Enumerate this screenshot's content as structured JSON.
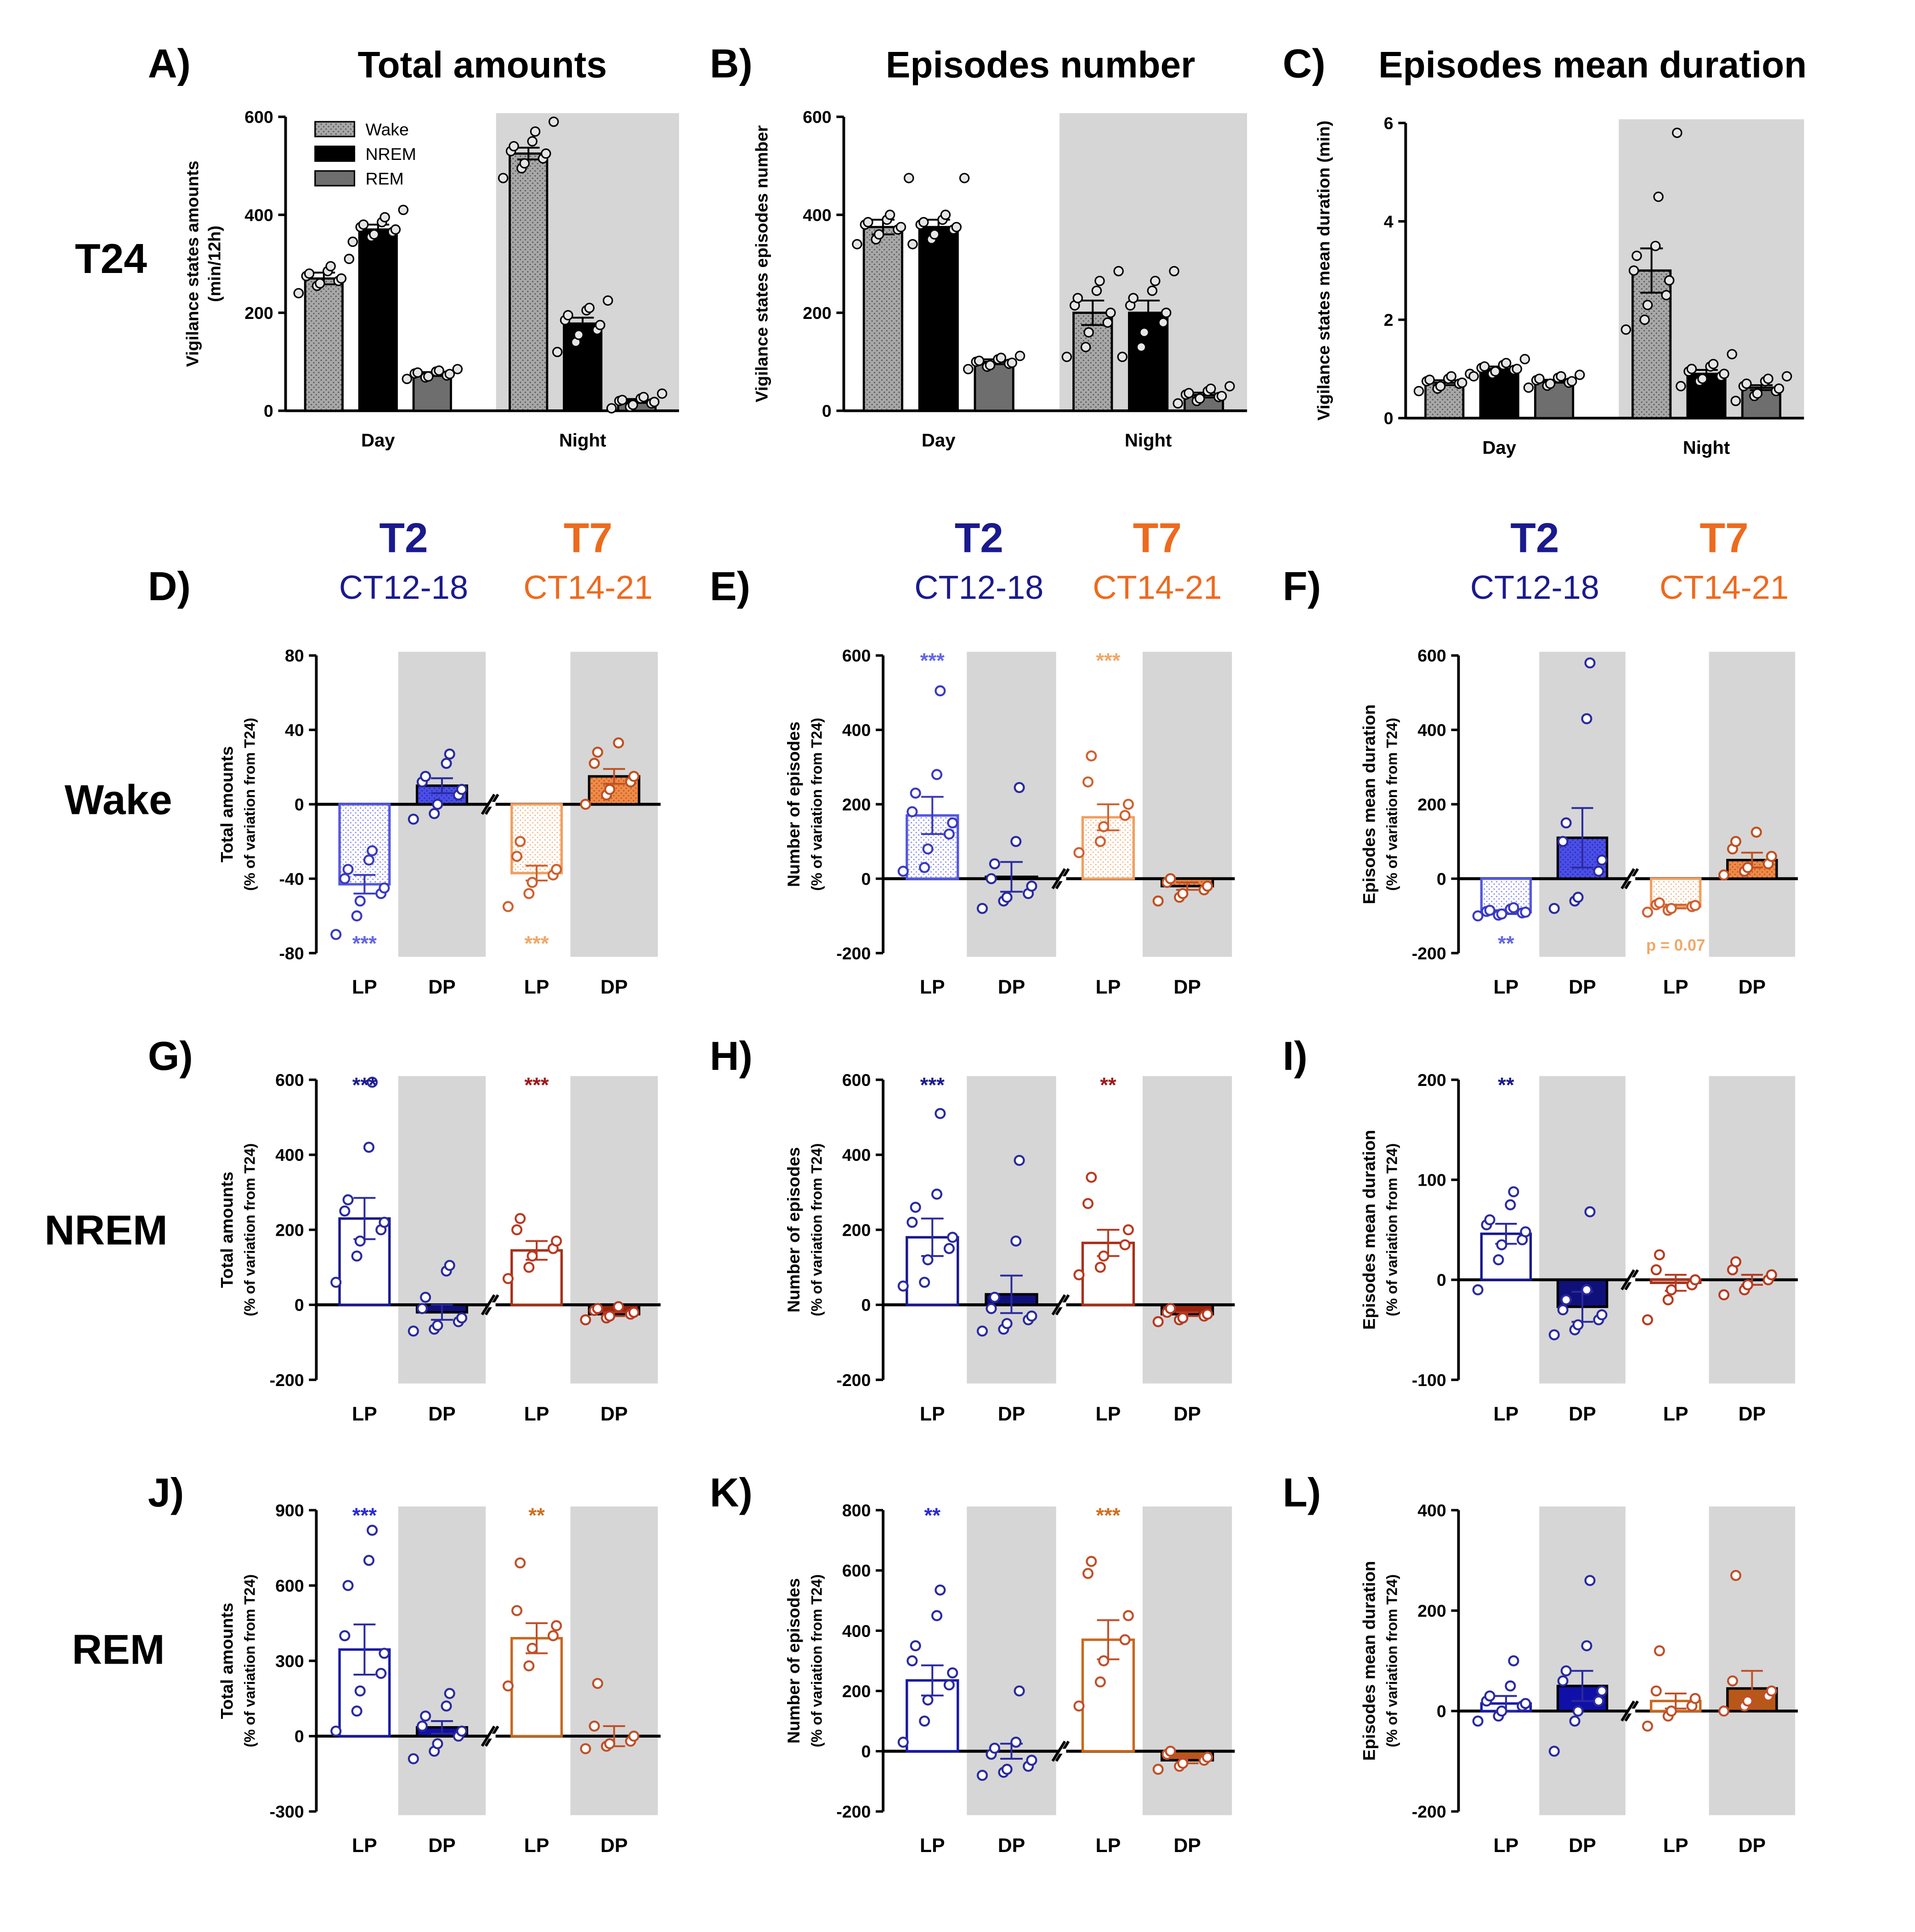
{
  "row_labels": [
    "T24",
    "Wake",
    "NREM",
    "REM"
  ],
  "column_groups": [
    {
      "g1": "T2",
      "s1": "CT12-18",
      "g2": "T7",
      "s2": "CT14-21"
    },
    {
      "g1": "T2",
      "s1": "CT12-18",
      "g2": "T7",
      "s2": "CT14-21"
    },
    {
      "g1": "T2",
      "s1": "CT12-18",
      "g2": "T7",
      "s2": "CT14-21"
    }
  ],
  "colors": {
    "t2_light": "#5558e0",
    "t2_dark": "#1a1a8e",
    "t7_light": "#f0a060",
    "t7_dark": "#a83018",
    "night_shade": "#d6d6d6",
    "wake_bar": "#a0a0a0",
    "nrem_bar": "#000000",
    "rem_bar": "#6e6e6e"
  },
  "chart_data": [
    {
      "id": "A",
      "letter": "A)",
      "type": "bar",
      "title": "Total amounts",
      "ylabel": [
        "Vigilance states amounts",
        "(min/12h)"
      ],
      "ylim": [
        0,
        600
      ],
      "yticks": [
        "0",
        "200",
        "400",
        "600"
      ],
      "categories": [
        "Day",
        "Night"
      ],
      "shaded_category": "Night",
      "legend": [
        {
          "name": "Wake",
          "pattern": "dotted"
        },
        {
          "name": "NREM",
          "pattern": "solid-black"
        },
        {
          "name": "REM",
          "pattern": "solid-gray"
        }
      ],
      "series": [
        {
          "name": "Wake",
          "values": [
            270,
            525
          ],
          "sem": [
            12,
            12
          ],
          "points": [
            [
              240,
              255,
              260,
              265,
              270,
              275,
              280,
              285,
              295,
              310
            ],
            [
              475,
              495,
              505,
              515,
              525,
              530,
              540,
              550,
              570,
              590
            ]
          ]
        },
        {
          "name": "NREM",
          "values": [
            370,
            178
          ],
          "sem": [
            10,
            12
          ],
          "points": [
            [
              345,
              355,
              360,
              365,
              370,
              375,
              380,
              385,
              395,
              410
            ],
            [
              120,
              140,
              155,
              165,
              175,
              185,
              195,
              205,
              210,
              225
            ]
          ]
        },
        {
          "name": "REM",
          "values": [
            75,
            20
          ],
          "sem": [
            4,
            4
          ],
          "points": [
            [
              65,
              68,
              70,
              72,
              75,
              76,
              78,
              80,
              82,
              85
            ],
            [
              5,
              8,
              12,
              15,
              18,
              20,
              22,
              25,
              28,
              35
            ]
          ]
        }
      ]
    },
    {
      "id": "B",
      "letter": "B)",
      "type": "bar",
      "title": "Episodes number",
      "ylabel": [
        "Vigilance states episodes number"
      ],
      "ylim": [
        0,
        600
      ],
      "yticks": [
        "0",
        "200",
        "400",
        "600"
      ],
      "categories": [
        "Day",
        "Night"
      ],
      "shaded_category": "Night",
      "series": [
        {
          "name": "Wake",
          "values": [
            375,
            200
          ],
          "sem": [
            15,
            25
          ],
          "points": [
            [
              340,
              350,
              360,
              370,
              375,
              380,
              385,
              390,
              400,
              475
            ],
            [
              110,
              130,
              160,
              180,
              200,
              215,
              230,
              245,
              265,
              285
            ]
          ]
        },
        {
          "name": "NREM",
          "values": [
            375,
            200
          ],
          "sem": [
            15,
            25
          ],
          "points": [
            [
              340,
              350,
              360,
              370,
              375,
              380,
              385,
              390,
              400,
              475
            ],
            [
              110,
              130,
              160,
              180,
              200,
              215,
              230,
              245,
              265,
              285
            ]
          ]
        },
        {
          "name": "REM",
          "values": [
            100,
            32
          ],
          "sem": [
            5,
            5
          ],
          "points": [
            [
              85,
              90,
              93,
              96,
              98,
              100,
              102,
              105,
              108,
              112
            ],
            [
              15,
              20,
              25,
              28,
              30,
              33,
              36,
              40,
              45,
              50
            ]
          ]
        }
      ]
    },
    {
      "id": "C",
      "letter": "C)",
      "type": "bar",
      "title": "Episodes mean duration",
      "ylabel": [
        "Vigilance states mean duration (min)"
      ],
      "ylim": [
        0,
        6
      ],
      "yticks": [
        "0",
        "2",
        "4",
        "6"
      ],
      "categories": [
        "Day",
        "Night"
      ],
      "shaded_category": "Night",
      "series": [
        {
          "name": "Wake",
          "values": [
            0.72,
            3.0
          ],
          "sem": [
            0.05,
            0.45
          ],
          "points": [
            [
              0.55,
              0.6,
              0.65,
              0.7,
              0.72,
              0.75,
              0.78,
              0.8,
              0.85,
              0.9
            ],
            [
              1.8,
              2.0,
              2.3,
              2.5,
              2.8,
              3.0,
              3.3,
              3.5,
              4.5,
              5.8
            ]
          ]
        },
        {
          "name": "NREM",
          "values": [
            1.0,
            0.9
          ],
          "sem": [
            0.05,
            0.08
          ],
          "points": [
            [
              0.85,
              0.9,
              0.95,
              0.98,
              1.0,
              1.02,
              1.05,
              1.08,
              1.12,
              1.2
            ],
            [
              0.65,
              0.75,
              0.8,
              0.85,
              0.9,
              0.95,
              1.0,
              1.05,
              1.1,
              1.3
            ]
          ]
        },
        {
          "name": "REM",
          "values": [
            0.75,
            0.62
          ],
          "sem": [
            0.03,
            0.05
          ],
          "points": [
            [
              0.62,
              0.66,
              0.7,
              0.72,
              0.75,
              0.77,
              0.8,
              0.82,
              0.85,
              0.88
            ],
            [
              0.35,
              0.45,
              0.5,
              0.55,
              0.6,
              0.65,
              0.7,
              0.75,
              0.8,
              0.85
            ]
          ]
        }
      ]
    },
    {
      "id": "D",
      "letter": "D)",
      "type": "bar",
      "state": "Wake",
      "ylabel": [
        "Total amounts",
        "(% of variation from T24)"
      ],
      "ylim": [
        -80,
        80
      ],
      "yticks": [
        "-80",
        "-40",
        "0",
        "40",
        "80"
      ],
      "categories": [
        "LP",
        "DP",
        "LP",
        "DP"
      ],
      "values": [
        -43,
        10,
        -37,
        15
      ],
      "sem": [
        5,
        4,
        4,
        4
      ],
      "points": [
        [
          -70,
          -60,
          -52,
          -48,
          -45,
          -40,
          -35,
          -30,
          -25
        ],
        [
          -8,
          -5,
          0,
          5,
          8,
          12,
          15,
          22,
          27
        ],
        [
          -55,
          -48,
          -42,
          -38,
          -35,
          -28,
          -20
        ],
        [
          0,
          5,
          8,
          12,
          15,
          22,
          28,
          33
        ]
      ],
      "sig": [
        {
          "bar": 0,
          "text": "***",
          "pos": "bottom"
        },
        {
          "bar": 2,
          "text": "***",
          "pos": "bottom"
        }
      ]
    },
    {
      "id": "E",
      "letter": "E)",
      "type": "bar",
      "state": "Wake",
      "ylabel": [
        "Number of episodes",
        "(% of variation from T24)"
      ],
      "ylim": [
        -200,
        600
      ],
      "yticks": [
        "-200",
        "0",
        "200",
        "400",
        "600"
      ],
      "categories": [
        "LP",
        "DP",
        "LP",
        "DP"
      ],
      "values": [
        170,
        5,
        165,
        -20
      ],
      "sem": [
        50,
        40,
        35,
        10
      ],
      "points": [
        [
          20,
          30,
          80,
          120,
          150,
          180,
          230,
          280,
          505
        ],
        [
          -80,
          -60,
          -50,
          -40,
          -20,
          0,
          40,
          100,
          245
        ],
        [
          70,
          100,
          140,
          170,
          200,
          260,
          330
        ],
        [
          -60,
          -50,
          -40,
          -30,
          -20,
          -10,
          0
        ]
      ],
      "sig": [
        {
          "bar": 0,
          "text": "***",
          "pos": "top"
        },
        {
          "bar": 2,
          "text": "***",
          "pos": "top"
        }
      ]
    },
    {
      "id": "F",
      "letter": "F)",
      "type": "bar",
      "state": "Wake",
      "ylabel": [
        "Episodes mean duration",
        "(% of variation from T24)"
      ],
      "ylim": [
        -200,
        600
      ],
      "yticks": [
        "-200",
        "0",
        "200",
        "400",
        "600"
      ],
      "categories": [
        "LP",
        "DP",
        "LP",
        "DP"
      ],
      "values": [
        -90,
        110,
        -75,
        50
      ],
      "sem": [
        5,
        80,
        5,
        20
      ],
      "points": [
        [
          -100,
          -98,
          -95,
          -92,
          -90,
          -88,
          -85,
          -82,
          -78
        ],
        [
          -80,
          -60,
          -50,
          20,
          50,
          100,
          150,
          430,
          580
        ],
        [
          -90,
          -85,
          -80,
          -75,
          -72,
          -70,
          -65
        ],
        [
          10,
          20,
          30,
          40,
          60,
          80,
          100,
          125
        ]
      ],
      "sig": [
        {
          "bar": 0,
          "text": "**",
          "pos": "bottom"
        },
        {
          "bar": 2,
          "text": "p = 0.07",
          "pos": "bottom"
        }
      ]
    },
    {
      "id": "G",
      "letter": "G)",
      "type": "bar",
      "state": "NREM",
      "ylabel": [
        "Total amounts",
        "(% of variation from T24)"
      ],
      "ylim": [
        -200,
        600
      ],
      "yticks": [
        "-200",
        "0",
        "200",
        "400",
        "600"
      ],
      "categories": [
        "LP",
        "DP",
        "LP",
        "DP"
      ],
      "values": [
        230,
        -20,
        145,
        -25
      ],
      "sem": [
        55,
        20,
        25,
        5
      ],
      "points": [
        [
          60,
          130,
          170,
          200,
          220,
          250,
          280,
          420,
          600
        ],
        [
          -70,
          -65,
          -55,
          -45,
          -35,
          -10,
          20,
          90,
          105
        ],
        [
          70,
          100,
          130,
          150,
          170,
          200,
          230
        ],
        [
          -40,
          -35,
          -30,
          -25,
          -20,
          -15,
          -10,
          -5
        ]
      ],
      "sig": [
        {
          "bar": 0,
          "text": "***",
          "pos": "top"
        },
        {
          "bar": 2,
          "text": "***",
          "pos": "top"
        }
      ]
    },
    {
      "id": "H",
      "letter": "H)",
      "type": "bar",
      "state": "NREM",
      "ylabel": [
        "Number of episodes",
        "(% of variation from T24)"
      ],
      "ylim": [
        -200,
        600
      ],
      "yticks": [
        "-200",
        "0",
        "200",
        "400",
        "600"
      ],
      "categories": [
        "LP",
        "DP",
        "LP",
        "DP"
      ],
      "values": [
        180,
        28,
        165,
        -25
      ],
      "sem": [
        50,
        50,
        35,
        5
      ],
      "points": [
        [
          50,
          60,
          120,
          150,
          180,
          220,
          260,
          295,
          510
        ],
        [
          -70,
          -65,
          -50,
          -40,
          -30,
          -10,
          20,
          170,
          385
        ],
        [
          80,
          100,
          130,
          160,
          200,
          270,
          340
        ],
        [
          -45,
          -40,
          -35,
          -30,
          -25,
          -20,
          -10
        ]
      ],
      "sig": [
        {
          "bar": 0,
          "text": "***",
          "pos": "top"
        },
        {
          "bar": 2,
          "text": "**",
          "pos": "top"
        }
      ]
    },
    {
      "id": "I",
      "letter": "I)",
      "type": "bar",
      "state": "NREM",
      "ylabel": [
        "Episodes mean duration",
        "(% of variation from T24)"
      ],
      "ylim": [
        -100,
        200
      ],
      "yticks": [
        "-100",
        "0",
        "100",
        "200"
      ],
      "categories": [
        "LP",
        "DP",
        "LP",
        "DP"
      ],
      "values": [
        46,
        -27,
        -3,
        0
      ],
      "sem": [
        10,
        15,
        8,
        5
      ],
      "points": [
        [
          -10,
          20,
          35,
          40,
          48,
          55,
          60,
          75,
          88
        ],
        [
          -55,
          -50,
          -45,
          -40,
          -35,
          -30,
          -20,
          -10,
          68
        ],
        [
          -40,
          -20,
          -10,
          -5,
          0,
          10,
          25
        ],
        [
          -15,
          -10,
          -5,
          0,
          5,
          10,
          18
        ]
      ],
      "sig": [
        {
          "bar": 0,
          "text": "**",
          "pos": "top"
        }
      ]
    },
    {
      "id": "J",
      "letter": "J)",
      "type": "bar",
      "state": "REM",
      "ylabel": [
        "Total amounts",
        "(% of variation from T24)"
      ],
      "ylim": [
        -300,
        900
      ],
      "yticks": [
        "-300",
        "0",
        "300",
        "600",
        "900"
      ],
      "categories": [
        "LP",
        "DP",
        "LP",
        "DP"
      ],
      "values": [
        345,
        35,
        390,
        0
      ],
      "sem": [
        100,
        25,
        60,
        40
      ],
      "points": [
        [
          20,
          100,
          180,
          250,
          330,
          400,
          600,
          700,
          820
        ],
        [
          -90,
          -60,
          -30,
          0,
          20,
          40,
          80,
          120,
          170
        ],
        [
          200,
          280,
          350,
          400,
          440,
          500,
          690
        ],
        [
          -50,
          -40,
          -30,
          -20,
          0,
          40,
          210
        ]
      ],
      "sig": [
        {
          "bar": 0,
          "text": "***",
          "pos": "top"
        },
        {
          "bar": 2,
          "text": "**",
          "pos": "top"
        }
      ]
    },
    {
      "id": "K",
      "letter": "K)",
      "type": "bar",
      "state": "REM",
      "ylabel": [
        "Number of episodes",
        "(% of variation from T24)"
      ],
      "ylim": [
        -200,
        800
      ],
      "yticks": [
        "-200",
        "0",
        "200",
        "400",
        "600",
        "800"
      ],
      "categories": [
        "LP",
        "DP",
        "LP",
        "DP"
      ],
      "values": [
        235,
        0,
        370,
        -30
      ],
      "sem": [
        50,
        25,
        65,
        10
      ],
      "points": [
        [
          30,
          100,
          170,
          220,
          260,
          300,
          350,
          450,
          535
        ],
        [
          -80,
          -70,
          -60,
          -50,
          -30,
          -10,
          10,
          30,
          200
        ],
        [
          150,
          230,
          300,
          370,
          450,
          590,
          630
        ],
        [
          -60,
          -50,
          -40,
          -30,
          -20,
          -10,
          0
        ]
      ],
      "sig": [
        {
          "bar": 0,
          "text": "**",
          "pos": "top"
        },
        {
          "bar": 2,
          "text": "***",
          "pos": "top"
        }
      ]
    },
    {
      "id": "L",
      "letter": "L)",
      "type": "bar",
      "state": "REM",
      "ylabel": [
        "Episodes mean duration",
        "(% of variation from T24)"
      ],
      "ylim": [
        -200,
        400
      ],
      "yticks": [
        "-200",
        "0",
        "200",
        "400"
      ],
      "categories": [
        "LP",
        "DP",
        "LP",
        "DP"
      ],
      "values": [
        15,
        50,
        20,
        45
      ],
      "sem": [
        15,
        30,
        15,
        35
      ],
      "points": [
        [
          -20,
          -10,
          0,
          10,
          15,
          20,
          30,
          50,
          100
        ],
        [
          -80,
          -20,
          0,
          20,
          40,
          60,
          80,
          130,
          260
        ],
        [
          -30,
          -10,
          0,
          10,
          25,
          40,
          120
        ],
        [
          0,
          10,
          20,
          30,
          40,
          60,
          270
        ]
      ],
      "sig": []
    }
  ]
}
